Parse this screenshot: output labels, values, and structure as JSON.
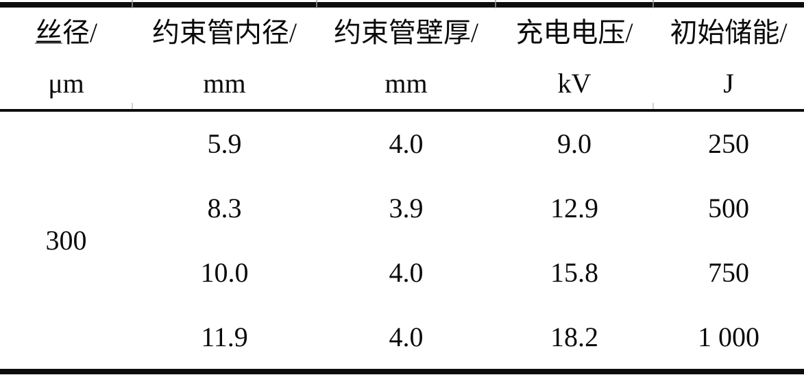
{
  "table": {
    "columns": [
      {
        "title": "丝径/",
        "unit": "μm"
      },
      {
        "title": "约束管内径/",
        "unit": "mm"
      },
      {
        "title": "约束管壁厚/",
        "unit": "mm"
      },
      {
        "title": "充电电压/",
        "unit": "kV"
      },
      {
        "title": "初始储能/",
        "unit": "J"
      }
    ],
    "wire_diameter_value": "300",
    "rows": [
      [
        "5.9",
        "4.0",
        "9.0",
        "250"
      ],
      [
        "8.3",
        "3.9",
        "12.9",
        "500"
      ],
      [
        "10.0",
        "4.0",
        "15.8",
        "750"
      ],
      [
        "11.9",
        "4.0",
        "18.2",
        "1 000"
      ]
    ]
  },
  "colors": {
    "background": "#ffffff",
    "text": "#0a0a0a",
    "rule": "#0d0d0d",
    "underline_artifact": "#8a8a8a",
    "tick_artifact": "#9a9a9a"
  }
}
